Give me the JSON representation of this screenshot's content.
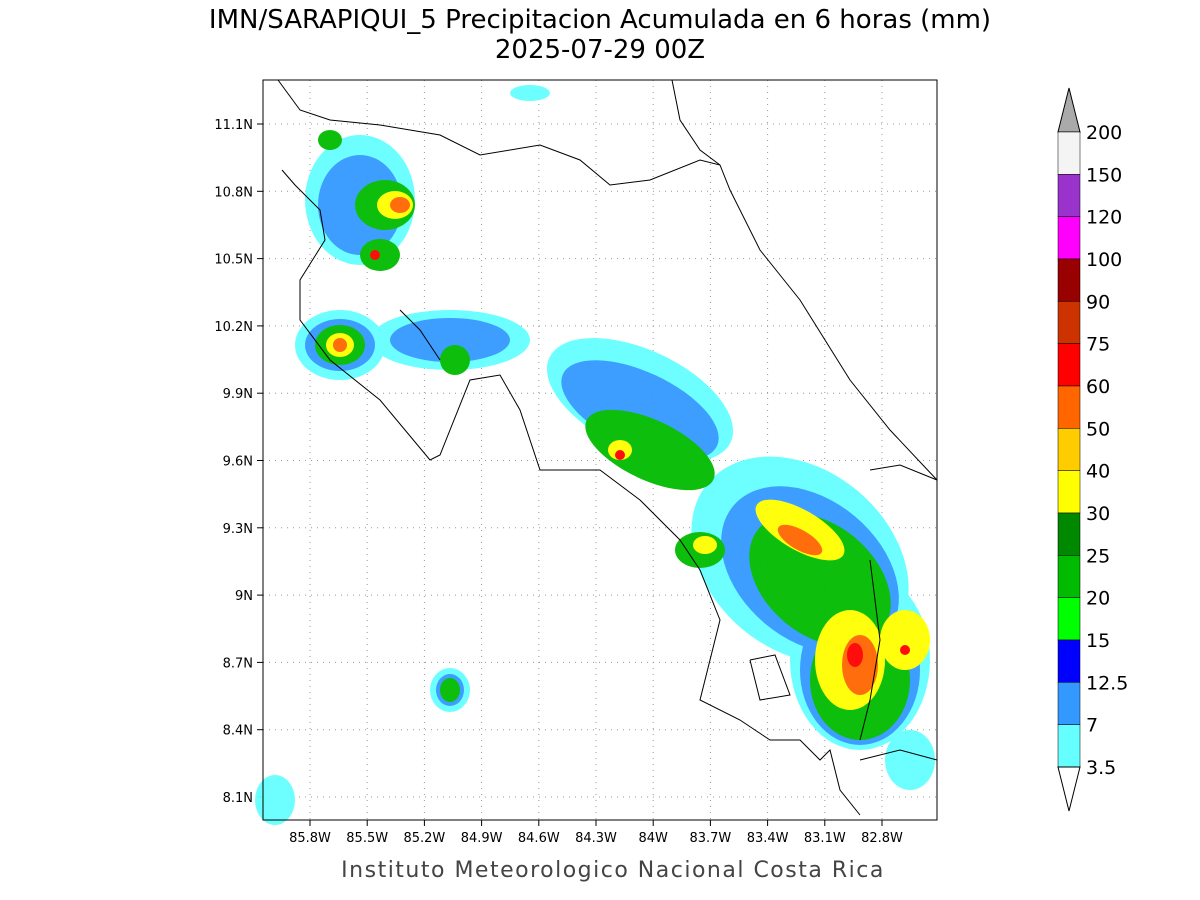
{
  "header": {
    "title": "IMN/SARAPIQUI_5 Precipitacion Acumulada en 6 horas (mm)",
    "subtitle": "2025-07-29 00Z"
  },
  "map": {
    "lat_ticks": [
      "11.1N",
      "10.8N",
      "10.5N",
      "10.2N",
      "9.9N",
      "9.6N",
      "9.3N",
      "9N",
      "8.7N",
      "8.4N",
      "8.1N"
    ],
    "lon_ticks": [
      "85.8W",
      "85.5W",
      "85.2W",
      "84.9W",
      "84.6W",
      "84.3W",
      "84W",
      "83.7W",
      "83.4W",
      "83.1W",
      "82.8W"
    ]
  },
  "colorbar": {
    "labels": [
      "200",
      "150",
      "120",
      "100",
      "90",
      "75",
      "60",
      "50",
      "40",
      "30",
      "25",
      "20",
      "15",
      "12.5",
      "7",
      "3.5"
    ],
    "colors": [
      "#f4f4f4",
      "#9933cc",
      "#ff00ff",
      "#990000",
      "#cc3300",
      "#ff0000",
      "#ff6600",
      "#ffcc00",
      "#ffff00",
      "#008800",
      "#00bb00",
      "#00ff00",
      "#0000ff",
      "#3399ff",
      "#66ffff"
    ],
    "over_color": "#aaaaaa",
    "under_color": "#ffffff"
  },
  "footer": "Instituto Meteorologico Nacional Costa Rica"
}
